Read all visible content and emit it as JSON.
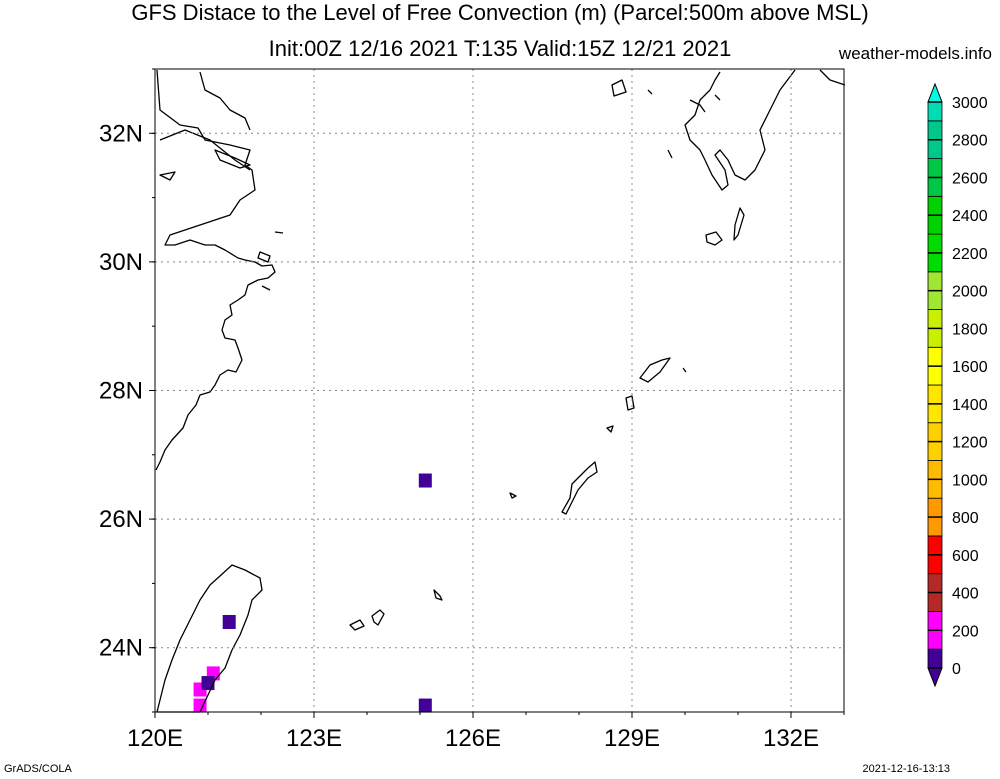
{
  "header": {
    "title_line1": "GFS Distace to the Level of Free Convection (m) (Parcel:500m above MSL)",
    "title_line2": "Init:00Z 12/16 2021 T:135 Valid:15Z 12/21 2021",
    "site": "weather-models.info"
  },
  "footer": {
    "left": "GrADS/COLA",
    "right": "2021-12-16-13:13"
  },
  "map": {
    "lon_range": [
      120,
      133
    ],
    "lat_range": [
      23,
      33
    ],
    "lon_ticks": [
      {
        "value": 120,
        "label": "120E"
      },
      {
        "value": 123,
        "label": "123E"
      },
      {
        "value": 126,
        "label": "126E"
      },
      {
        "value": 129,
        "label": "129E"
      },
      {
        "value": 132,
        "label": "132E"
      }
    ],
    "lat_ticks": [
      {
        "value": 24,
        "label": "24N"
      },
      {
        "value": 26,
        "label": "26N"
      },
      {
        "value": 28,
        "label": "28N"
      },
      {
        "value": 30,
        "label": "30N"
      },
      {
        "value": 32,
        "label": "32N"
      }
    ],
    "grid": true,
    "cells": [
      {
        "lon": 125.1,
        "lat": 26.6,
        "value": 50
      },
      {
        "lon": 121.4,
        "lat": 24.4,
        "value": 50
      },
      {
        "lon": 125.1,
        "lat": 23.1,
        "value": 50
      },
      {
        "lon": 121.1,
        "lat": 23.6,
        "value": 300
      },
      {
        "lon": 120.85,
        "lat": 23.35,
        "value": 300
      },
      {
        "lon": 120.85,
        "lat": 23.1,
        "value": 300
      },
      {
        "lon": 121.0,
        "lat": 23.45,
        "value": 150
      }
    ]
  },
  "colorbar": {
    "labels": [
      "0",
      "200",
      "400",
      "600",
      "800",
      "1000",
      "1200",
      "1400",
      "1600",
      "1800",
      "2000",
      "2200",
      "2400",
      "2600",
      "2800",
      "3000"
    ],
    "colors": [
      "#410096",
      "#ff00ff",
      "#b42828",
      "#ff0000",
      "#ff9900",
      "#ffbb00",
      "#ffd000",
      "#ffe600",
      "#ffff00",
      "#c8f000",
      "#a0e632",
      "#00dc00",
      "#00d200",
      "#00c846",
      "#00c88c",
      "#00dcb4",
      "#00f0d2",
      "#00fae6"
    ]
  }
}
